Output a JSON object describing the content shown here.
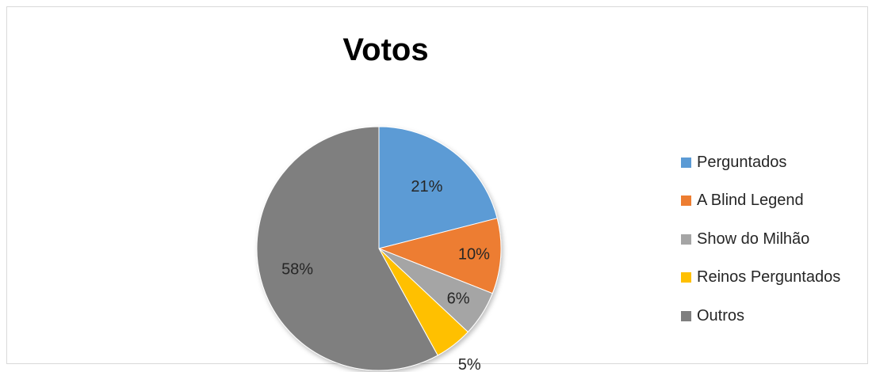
{
  "chart_data": {
    "type": "pie",
    "title": "Votos",
    "categories": [
      "Perguntados",
      "A Blind Legend",
      "Show do Milhão",
      "Reinos Perguntados",
      "Outros"
    ],
    "values": [
      21,
      10,
      6,
      5,
      58
    ],
    "labels": [
      "21%",
      "10%",
      "6%",
      "5%",
      "58%"
    ],
    "colors": [
      "#5b9bd5",
      "#ed7d31",
      "#a5a5a5",
      "#ffc000",
      "#7f7f7f"
    ],
    "legend": "right"
  }
}
